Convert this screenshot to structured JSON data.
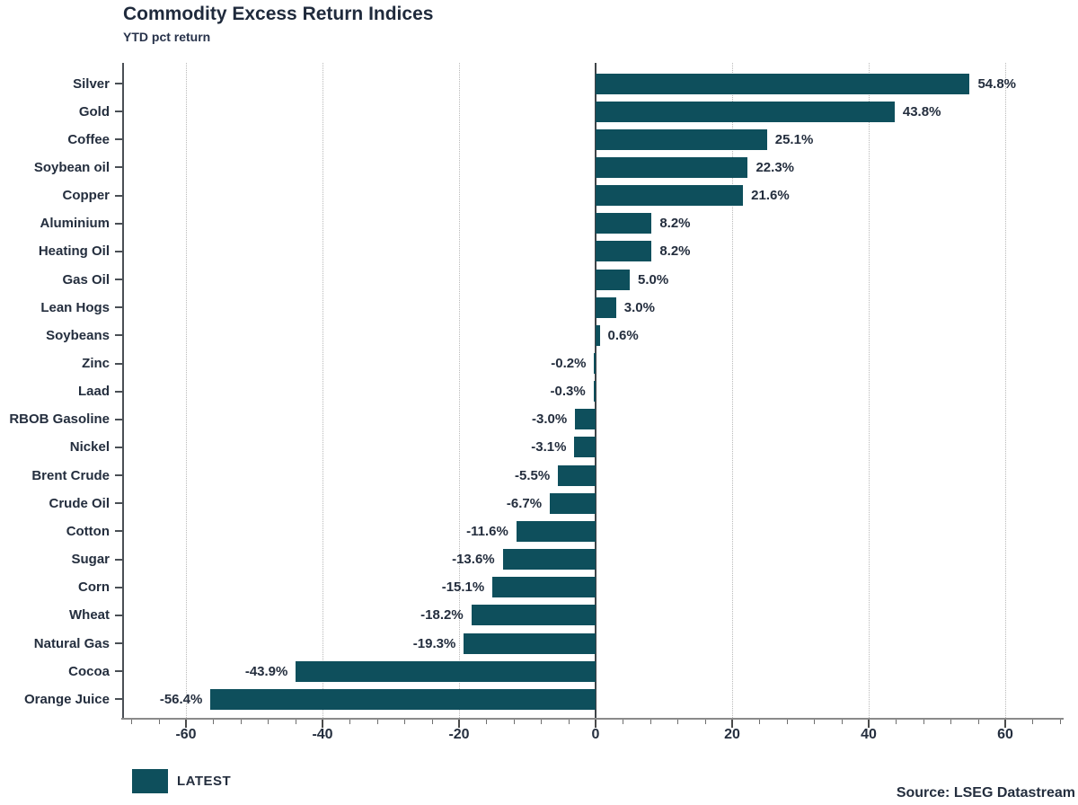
{
  "header": {
    "title": "Commodity Excess Return Indices",
    "subtitle": "YTD pct return"
  },
  "legend": {
    "label": "LATEST"
  },
  "source_note": "Source: LSEG Datastream",
  "colors": {
    "bar": "#0e4f5c",
    "text": "#242e3e",
    "grid": "#b9b9b9",
    "axis": "#8a8a8a",
    "zero_line": "#3f4448"
  },
  "chart_data": {
    "type": "bar",
    "orientation": "horizontal",
    "title": "Commodity Excess Return Indices",
    "xlabel": "YTD pct return",
    "categories": [
      "Silver",
      "Gold",
      "Coffee",
      "Soybean oil",
      "Copper",
      "Aluminium",
      "Heating Oil",
      "Gas Oil",
      "Lean Hogs",
      "Soybeans",
      "Zinc",
      "Laad",
      "RBOB Gasoline",
      "Nickel",
      "Brent Crude",
      "Crude Oil",
      "Cotton",
      "Sugar",
      "Corn",
      "Wheat",
      "Natural Gas",
      "Cocoa",
      "Orange Juice"
    ],
    "values": [
      54.8,
      43.8,
      25.1,
      22.3,
      21.6,
      8.2,
      8.2,
      5.0,
      3.0,
      0.6,
      -0.2,
      -0.3,
      -3.0,
      -3.1,
      -5.5,
      -6.7,
      -11.6,
      -13.6,
      -15.1,
      -18.2,
      -19.3,
      -43.9,
      -56.4
    ],
    "value_labels": [
      "54.8%",
      "43.8%",
      "25.1%",
      "22.3%",
      "21.6%",
      "8.2%",
      "8.2%",
      "5.0%",
      "3.0%",
      "0.6%",
      "-0.2%",
      "-0.3%",
      "-3.0%",
      "-3.1%",
      "-5.5%",
      "-6.7%",
      "-11.6%",
      "-13.6%",
      "-15.1%",
      "-18.2%",
      "-19.3%",
      "-43.9%",
      "-56.4%"
    ],
    "series": [
      {
        "name": "LATEST",
        "values": [
          54.8,
          43.8,
          25.1,
          22.3,
          21.6,
          8.2,
          8.2,
          5.0,
          3.0,
          0.6,
          -0.2,
          -0.3,
          -3.0,
          -3.1,
          -5.5,
          -6.7,
          -11.6,
          -13.6,
          -15.1,
          -18.2,
          -19.3,
          -43.9,
          -56.4
        ]
      }
    ],
    "x_major_ticks": [
      -60,
      -40,
      -20,
      0,
      20,
      40,
      60
    ],
    "x_minor_step": 4,
    "xlim": [
      -69.2,
      68.6
    ],
    "grid": "vertical dotted at major ticks",
    "legend_position": "bottom-left",
    "legend_entries": [
      "LATEST"
    ],
    "annotations": [
      "Source: LSEG Datastream"
    ]
  }
}
